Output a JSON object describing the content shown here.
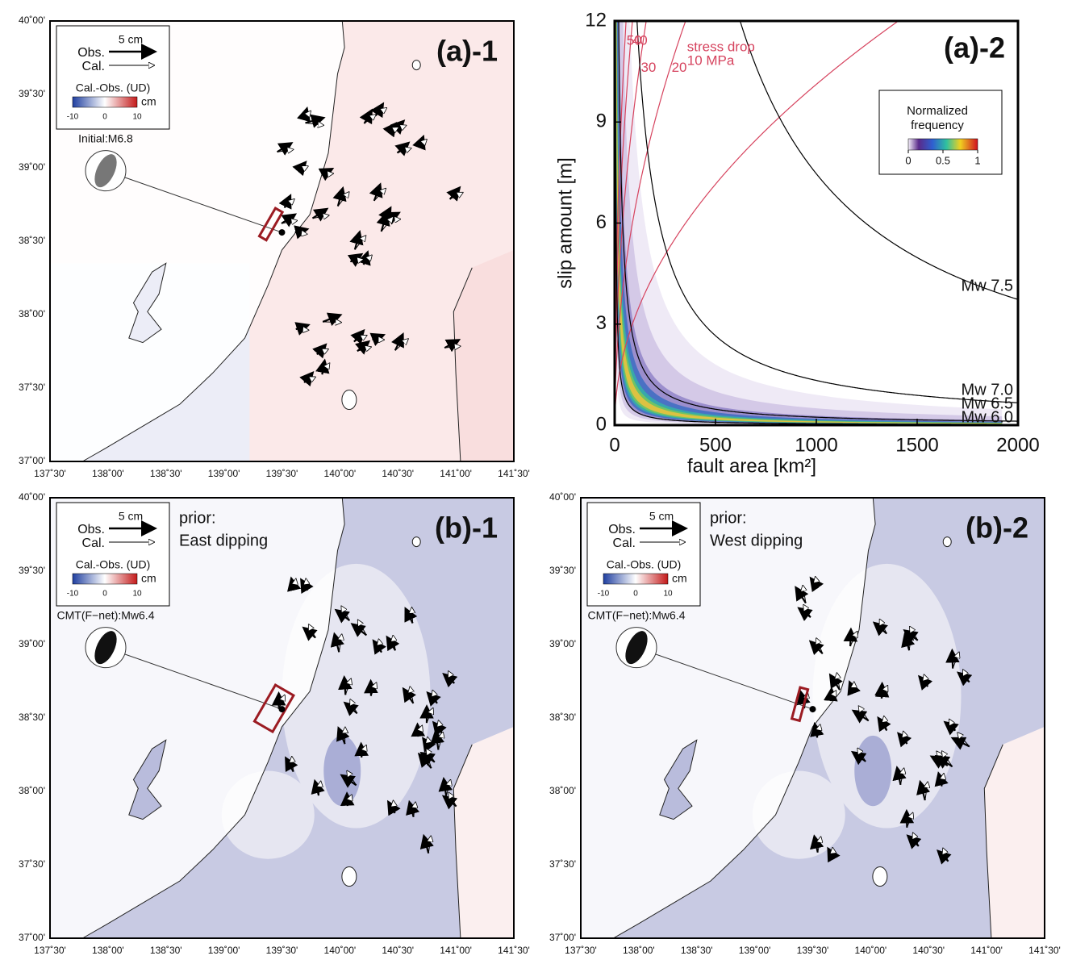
{
  "map_axes": {
    "lat_ticks": [
      "40˚00'",
      "39˚30'",
      "39˚00'",
      "38˚30'",
      "38˚00'",
      "37˚30'",
      "37˚00'"
    ],
    "lon_ticks": [
      "137˚30'",
      "138˚00'",
      "138˚30'",
      "139˚00'",
      "139˚30'",
      "140˚00'",
      "140˚30'",
      "141˚00'",
      "141˚30'"
    ]
  },
  "maps": [
    {
      "panel": "(a)-1",
      "scale": "5 cm",
      "obs": "Obs.",
      "cal": "Cal.",
      "colorbar_title": "Cal.-Obs. (UD)",
      "unit": "cm",
      "colorbar_ticks": [
        "-10",
        "0",
        "10"
      ],
      "mechanism": "Initial:M6.8"
    },
    {
      "panel": "(b)-1",
      "scale": "5 cm",
      "obs": "Obs.",
      "cal": "Cal.",
      "colorbar_title": "Cal.-Obs. (UD)",
      "unit": "cm",
      "colorbar_ticks": [
        "-10",
        "0",
        "10"
      ],
      "mechanism": "CMT(F−net):Mw6.4",
      "prior": [
        "prior:",
        "East dipping"
      ]
    },
    {
      "panel": "(b)-2",
      "scale": "5 cm",
      "obs": "Obs.",
      "cal": "Cal.",
      "colorbar_title": "Cal.-Obs. (UD)",
      "unit": "cm",
      "colorbar_ticks": [
        "-10",
        "0",
        "10"
      ],
      "mechanism": "CMT(F−net):Mw6.4",
      "prior": [
        "prior:",
        "West dipping"
      ]
    }
  ],
  "chart_data": {
    "type": "density",
    "panel": "(a)-2",
    "x_label": "fault area [km²]",
    "y_label": "slip amount [m]",
    "xlim": [
      0,
      2000
    ],
    "ylim": [
      0,
      12
    ],
    "xticks": [
      0,
      500,
      1000,
      1500,
      2000
    ],
    "yticks": [
      0,
      3,
      6,
      9,
      12
    ],
    "magnitude_color": "#000000",
    "magnitude_curves": [
      {
        "label": "Mw 7.5",
        "mw": 7.5
      },
      {
        "label": "Mw 7.0",
        "mw": 7.0
      },
      {
        "label": "Mw 6.5",
        "mw": 6.5
      },
      {
        "label": "Mw 6.0",
        "mw": 6.0
      }
    ],
    "stress_drop_color": "#d6435e",
    "stress_drop_title": "stress drop",
    "stress_drop_curves": [
      {
        "label": "50",
        "mpa": 50
      },
      {
        "label": "30",
        "mpa": 30
      },
      {
        "label": "40",
        "mpa": 40
      },
      {
        "label": "20",
        "mpa": 20
      },
      {
        "label": "10 MPa",
        "mpa": 10
      }
    ],
    "colorbar": {
      "title": [
        "Normalized",
        "frequency"
      ],
      "ticks": [
        0,
        0.5,
        1
      ]
    }
  }
}
